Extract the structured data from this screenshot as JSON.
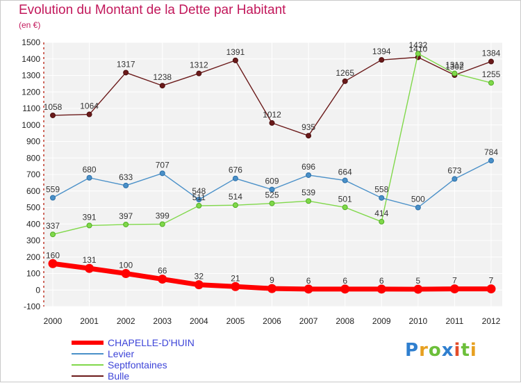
{
  "chart_data": {
    "type": "line",
    "title": "Evolution du Montant de la Dette par Habitant",
    "subtitle": "(en €)",
    "x": [
      "2000",
      "2001",
      "2002",
      "2003",
      "2004",
      "2005",
      "2006",
      "2007",
      "2008",
      "2009",
      "2010",
      "2011",
      "2012"
    ],
    "ylim": [
      -100,
      1500
    ],
    "yticks": [
      -100,
      0,
      100,
      200,
      300,
      400,
      500,
      600,
      700,
      800,
      900,
      1000,
      1100,
      1200,
      1300,
      1400,
      1500
    ],
    "grid": true,
    "legend_position": "bottom-left",
    "series": [
      {
        "name": "CHAPELLE-D'HUIN",
        "color": "#ff0000",
        "values": [
          160,
          131,
          100,
          66,
          32,
          21,
          9,
          6,
          6,
          6,
          5,
          7,
          7
        ]
      },
      {
        "name": "Levier",
        "color": "#4a90c8",
        "values": [
          559,
          680,
          633,
          707,
          548,
          676,
          609,
          696,
          664,
          558,
          500,
          673,
          784
        ]
      },
      {
        "name": "Septfontaines",
        "color": "#80d84a",
        "values": [
          337,
          391,
          397,
          399,
          511,
          514,
          525,
          539,
          501,
          414,
          1432,
          1312,
          1255
        ]
      },
      {
        "name": "Bulle",
        "color": "#6b1a1a",
        "values": [
          1058,
          1064,
          1317,
          1238,
          1312,
          1391,
          1012,
          935,
          1265,
          1394,
          1410,
          1302,
          1384
        ]
      }
    ]
  },
  "logo": {
    "letters": [
      "P",
      "r",
      "o",
      "x",
      "i",
      "t",
      "i"
    ],
    "colors": [
      "#2f7fcf",
      "#e7a020",
      "#6cbf3a",
      "#2f7fcf",
      "#e34d2a",
      "#6cbf3a",
      "#e7a020"
    ]
  }
}
